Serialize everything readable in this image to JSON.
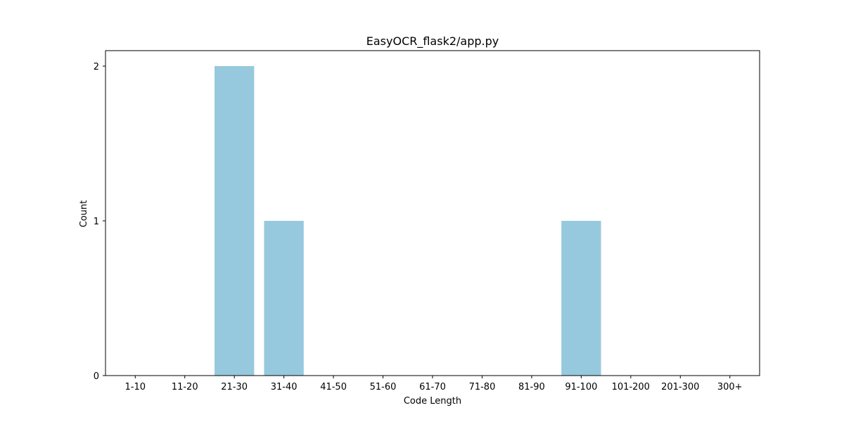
{
  "chart_data": {
    "type": "bar",
    "title": "EasyOCR_flask2/app.py",
    "xlabel": "Code Length",
    "ylabel": "Count",
    "categories": [
      "1-10",
      "11-20",
      "21-30",
      "31-40",
      "41-50",
      "51-60",
      "61-70",
      "71-80",
      "81-90",
      "91-100",
      "101-200",
      "201-300",
      "300+"
    ],
    "values": [
      0,
      0,
      2,
      1,
      0,
      0,
      0,
      0,
      0,
      1,
      0,
      0,
      0
    ],
    "ylim": [
      0,
      2.1
    ],
    "yticks": [
      0,
      1,
      2
    ],
    "bar_color": "#96c9dd",
    "grid": false,
    "legend": "none"
  }
}
